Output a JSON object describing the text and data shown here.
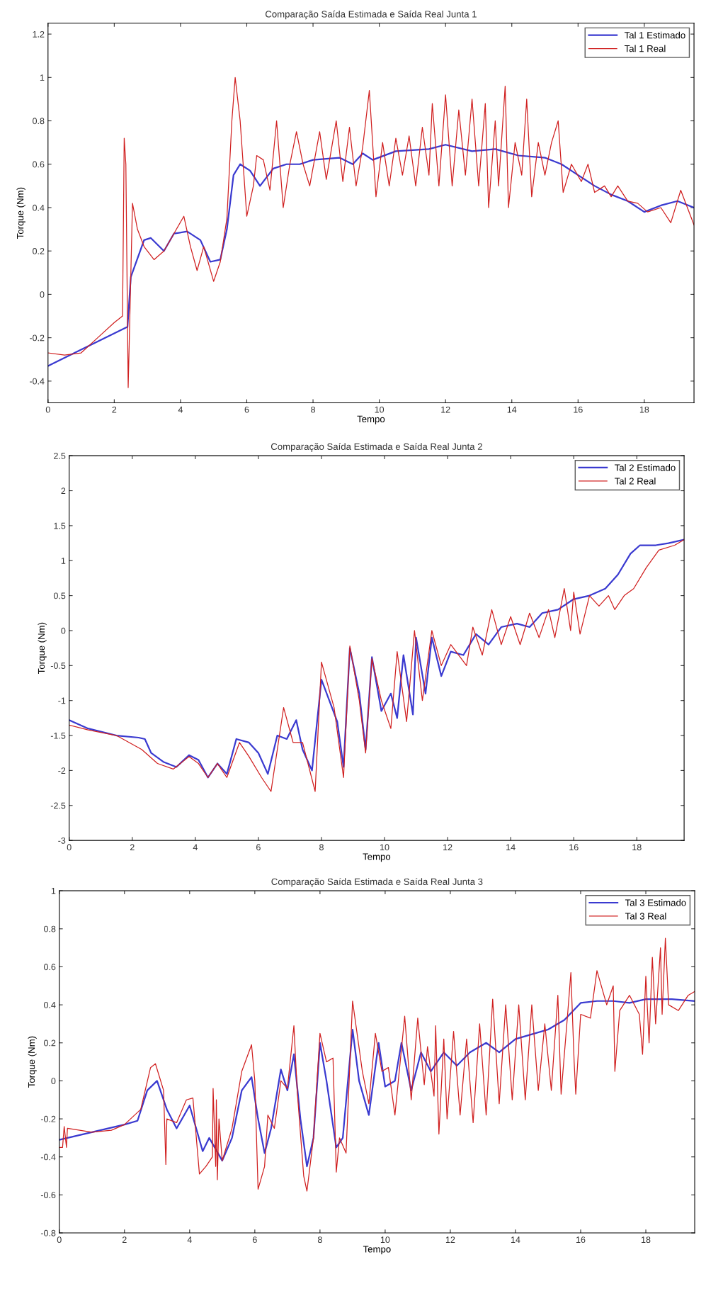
{
  "chart_data": [
    {
      "type": "line",
      "title": "Comparação Saída Estimada e Saída Real Junta 1",
      "xlabel": "Tempo",
      "ylabel": "Torque (Nm)",
      "xlim": [
        0,
        19.5
      ],
      "ylim": [
        -0.5,
        1.25
      ],
      "xticks": [
        0,
        2,
        4,
        6,
        8,
        10,
        12,
        14,
        16,
        18
      ],
      "yticks": [
        -0.4,
        -0.2,
        0,
        0.2,
        0.4,
        0.6,
        0.8,
        1,
        1.2
      ],
      "legend": "top right",
      "series": [
        {
          "name": "Tal 1 Estimado",
          "color": "#3a3ad0",
          "x": [
            0,
            2.4,
            2.5,
            2.9,
            3.1,
            3.5,
            3.8,
            4.2,
            4.6,
            4.9,
            5.2,
            5.4,
            5.6,
            5.8,
            6.1,
            6.4,
            6.8,
            7.2,
            7.6,
            8,
            8.8,
            9.2,
            9.5,
            9.8,
            10.5,
            11.5,
            12,
            12.8,
            13.5,
            14.2,
            15,
            15.5,
            16,
            16.5,
            17,
            17.5,
            18,
            18.5,
            19,
            19.5
          ],
          "values": [
            -0.33,
            -0.15,
            0.08,
            0.25,
            0.26,
            0.2,
            0.28,
            0.29,
            0.25,
            0.15,
            0.16,
            0.3,
            0.55,
            0.6,
            0.57,
            0.5,
            0.58,
            0.6,
            0.6,
            0.62,
            0.63,
            0.6,
            0.65,
            0.62,
            0.66,
            0.67,
            0.69,
            0.66,
            0.67,
            0.64,
            0.63,
            0.6,
            0.55,
            0.5,
            0.46,
            0.43,
            0.38,
            0.41,
            0.43,
            0.4
          ]
        },
        {
          "name": "Tal 1 Real",
          "color": "#d02020",
          "x": [
            0,
            0.5,
            1,
            1.5,
            2,
            2.25,
            2.3,
            2.35,
            2.42,
            2.55,
            2.7,
            2.9,
            3.2,
            3.5,
            3.8,
            4.1,
            4.3,
            4.5,
            4.7,
            5.0,
            5.2,
            5.4,
            5.55,
            5.65,
            5.8,
            6.0,
            6.2,
            6.3,
            6.5,
            6.7,
            6.9,
            7.1,
            7.3,
            7.5,
            7.7,
            7.9,
            8.2,
            8.4,
            8.7,
            8.9,
            9.1,
            9.3,
            9.5,
            9.7,
            9.9,
            10.1,
            10.3,
            10.5,
            10.7,
            10.9,
            11.1,
            11.3,
            11.5,
            11.6,
            11.8,
            12,
            12.2,
            12.4,
            12.6,
            12.8,
            13.0,
            13.2,
            13.3,
            13.5,
            13.6,
            13.8,
            13.9,
            14.1,
            14.3,
            14.45,
            14.6,
            14.8,
            15,
            15.2,
            15.4,
            15.55,
            15.8,
            16.1,
            16.3,
            16.5,
            16.8,
            17,
            17.2,
            17.5,
            17.8,
            18.1,
            18.5,
            18.8,
            19.1,
            19.5
          ],
          "values": [
            -0.27,
            -0.28,
            -0.27,
            -0.2,
            -0.13,
            -0.1,
            0.72,
            0.6,
            -0.43,
            0.42,
            0.3,
            0.22,
            0.16,
            0.2,
            0.28,
            0.36,
            0.22,
            0.11,
            0.22,
            0.06,
            0.15,
            0.35,
            0.8,
            1.0,
            0.8,
            0.36,
            0.5,
            0.64,
            0.62,
            0.48,
            0.8,
            0.4,
            0.6,
            0.75,
            0.6,
            0.5,
            0.75,
            0.53,
            0.8,
            0.52,
            0.77,
            0.5,
            0.68,
            0.94,
            0.45,
            0.7,
            0.5,
            0.72,
            0.55,
            0.73,
            0.5,
            0.77,
            0.55,
            0.88,
            0.5,
            0.92,
            0.5,
            0.85,
            0.55,
            0.9,
            0.5,
            0.88,
            0.4,
            0.8,
            0.5,
            0.96,
            0.4,
            0.7,
            0.55,
            0.9,
            0.45,
            0.7,
            0.55,
            0.7,
            0.8,
            0.47,
            0.6,
            0.52,
            0.6,
            0.47,
            0.5,
            0.45,
            0.5,
            0.43,
            0.42,
            0.38,
            0.4,
            0.33,
            0.48,
            0.32
          ]
        }
      ]
    },
    {
      "type": "line",
      "title": "Comparação Saída Estimada e Saída Real Junta 2",
      "xlabel": "Tempo",
      "ylabel": "Torque (Nm)",
      "xlim": [
        0,
        19.5
      ],
      "ylim": [
        -3,
        2.5
      ],
      "xticks": [
        0,
        2,
        4,
        6,
        8,
        10,
        12,
        14,
        16,
        18
      ],
      "yticks": [
        -3,
        -2.5,
        -2,
        -1.5,
        -1,
        -0.5,
        0,
        0.5,
        1,
        1.5,
        2,
        2.5
      ],
      "legend": "top right",
      "series": [
        {
          "name": "Tal 2 Estimado",
          "color": "#3a3ad0",
          "x": [
            0,
            0.6,
            1.5,
            2.2,
            2.4,
            2.6,
            3.0,
            3.4,
            3.8,
            4.1,
            4.4,
            4.7,
            5.0,
            5.3,
            5.7,
            6.0,
            6.3,
            6.6,
            6.9,
            7.2,
            7.4,
            7.7,
            8.0,
            8.5,
            8.7,
            8.9,
            9.2,
            9.4,
            9.6,
            9.9,
            10.2,
            10.4,
            10.6,
            10.9,
            11.0,
            11.3,
            11.5,
            11.8,
            12.1,
            12.5,
            12.9,
            13.3,
            13.7,
            14.2,
            14.6,
            15.0,
            15.5,
            16.0,
            16.5,
            17.0,
            17.4,
            17.8,
            18.1,
            18.6,
            19,
            19.5
          ],
          "values": [
            -1.28,
            -1.4,
            -1.5,
            -1.53,
            -1.55,
            -1.75,
            -1.88,
            -1.95,
            -1.78,
            -1.85,
            -2.1,
            -1.9,
            -2.05,
            -1.55,
            -1.6,
            -1.75,
            -2.05,
            -1.5,
            -1.55,
            -1.28,
            -1.7,
            -2.0,
            -0.7,
            -1.3,
            -1.95,
            -0.25,
            -0.9,
            -1.7,
            -0.38,
            -1.15,
            -0.9,
            -1.25,
            -0.35,
            -1.2,
            -0.1,
            -0.9,
            -0.1,
            -0.65,
            -0.3,
            -0.35,
            -0.05,
            -0.2,
            0.05,
            0.1,
            0.05,
            0.25,
            0.3,
            0.45,
            0.5,
            0.6,
            0.8,
            1.1,
            1.22,
            1.22,
            1.25,
            1.3
          ]
        },
        {
          "name": "Tal 2 Real",
          "color": "#d02020",
          "x": [
            0,
            0.6,
            1.5,
            2.3,
            2.8,
            3.3,
            3.8,
            4.1,
            4.4,
            4.7,
            5.0,
            5.4,
            5.7,
            6.1,
            6.4,
            6.8,
            7.1,
            7.4,
            7.8,
            8.0,
            8.4,
            8.7,
            8.9,
            9.2,
            9.4,
            9.6,
            9.9,
            10.2,
            10.4,
            10.7,
            10.95,
            11.2,
            11.5,
            11.8,
            12.1,
            12.6,
            12.8,
            13.1,
            13.4,
            13.7,
            14.0,
            14.3,
            14.6,
            14.9,
            15.2,
            15.4,
            15.7,
            15.9,
            16.0,
            16.2,
            16.5,
            16.8,
            17.1,
            17.3,
            17.6,
            17.9,
            18.3,
            18.7,
            19.2,
            19.5
          ],
          "values": [
            -1.35,
            -1.42,
            -1.5,
            -1.7,
            -1.9,
            -1.98,
            -1.8,
            -1.9,
            -2.1,
            -1.9,
            -2.1,
            -1.6,
            -1.8,
            -2.1,
            -2.3,
            -1.1,
            -1.6,
            -1.6,
            -2.3,
            -0.45,
            -1.1,
            -2.1,
            -0.22,
            -1.0,
            -1.75,
            -0.4,
            -1.0,
            -1.4,
            -0.3,
            -1.3,
            0.0,
            -1.0,
            0.0,
            -0.5,
            -0.2,
            -0.5,
            0.05,
            -0.35,
            0.3,
            -0.2,
            0.2,
            -0.2,
            0.25,
            -0.1,
            0.3,
            -0.1,
            0.6,
            0.0,
            0.55,
            -0.05,
            0.5,
            0.35,
            0.5,
            0.3,
            0.5,
            0.6,
            0.9,
            1.15,
            1.22,
            1.3
          ]
        }
      ]
    },
    {
      "type": "line",
      "title": "Comparação Saída Estimada e Saída Real Junta 3",
      "xlabel": "Tempo",
      "ylabel": "Torque (Nm)",
      "xlim": [
        0,
        19.5
      ],
      "ylim": [
        -0.8,
        1
      ],
      "xticks": [
        0,
        2,
        4,
        6,
        8,
        10,
        12,
        14,
        16,
        18
      ],
      "yticks": [
        -0.8,
        -0.6,
        -0.4,
        -0.2,
        0,
        0.2,
        0.4,
        0.6,
        0.8,
        1
      ],
      "legend": "top right",
      "series": [
        {
          "name": "Tal 3 Estimado",
          "color": "#3a3ad0",
          "x": [
            0,
            2.0,
            2.4,
            2.7,
            3.0,
            3.3,
            3.6,
            4.0,
            4.2,
            4.4,
            4.6,
            5.0,
            5.3,
            5.6,
            5.9,
            6.1,
            6.3,
            6.5,
            6.8,
            7.0,
            7.2,
            7.4,
            7.6,
            7.8,
            8.0,
            8.2,
            8.5,
            8.7,
            9.0,
            9.2,
            9.5,
            9.8,
            10.0,
            10.3,
            10.5,
            10.8,
            11.1,
            11.4,
            11.8,
            12.2,
            12.6,
            13.1,
            13.5,
            14.0,
            14.6,
            15.0,
            15.5,
            16.0,
            16.5,
            17.0,
            17.5,
            18.0,
            18.8,
            19.5
          ],
          "values": [
            -0.31,
            -0.23,
            -0.21,
            -0.05,
            0.0,
            -0.15,
            -0.25,
            -0.13,
            -0.25,
            -0.37,
            -0.3,
            -0.42,
            -0.3,
            -0.05,
            0.02,
            -0.2,
            -0.38,
            -0.25,
            0.06,
            -0.05,
            0.14,
            -0.2,
            -0.45,
            -0.3,
            0.2,
            0.0,
            -0.35,
            -0.3,
            0.27,
            0.0,
            -0.18,
            0.2,
            -0.03,
            0.0,
            0.2,
            -0.05,
            0.15,
            0.05,
            0.15,
            0.08,
            0.15,
            0.2,
            0.15,
            0.22,
            0.25,
            0.27,
            0.32,
            0.41,
            0.42,
            0.42,
            0.41,
            0.43,
            0.43,
            0.42
          ]
        },
        {
          "name": "Tal 3 Real",
          "color": "#d02020",
          "x": [
            0,
            0.1,
            0.15,
            0.22,
            0.25,
            1.0,
            1.6,
            2.0,
            2.5,
            2.8,
            2.95,
            3.2,
            3.27,
            3.3,
            3.6,
            3.9,
            4.1,
            4.3,
            4.5,
            4.7,
            4.72,
            4.8,
            4.82,
            4.85,
            4.9,
            5.0,
            5.3,
            5.6,
            5.9,
            6.0,
            6.1,
            6.3,
            6.4,
            6.6,
            6.8,
            7.0,
            7.2,
            7.3,
            7.5,
            7.6,
            7.8,
            8.0,
            8.2,
            8.4,
            8.5,
            8.6,
            8.8,
            9.0,
            9.3,
            9.5,
            9.7,
            9.9,
            10.1,
            10.3,
            10.6,
            10.8,
            11.0,
            11.2,
            11.3,
            11.5,
            11.55,
            11.65,
            11.8,
            11.9,
            12.1,
            12.3,
            12.5,
            12.7,
            12.9,
            13.1,
            13.3,
            13.5,
            13.7,
            13.9,
            14.1,
            14.3,
            14.5,
            14.7,
            14.9,
            15.1,
            15.3,
            15.4,
            15.6,
            15.7,
            15.8,
            15.85,
            16.0,
            16.3,
            16.5,
            16.8,
            17.0,
            17.05,
            17.2,
            17.5,
            17.8,
            17.9,
            18.0,
            18.1,
            18.2,
            18.3,
            18.45,
            18.5,
            18.6,
            18.7,
            19.0,
            19.3,
            19.5
          ],
          "values": [
            -0.35,
            -0.35,
            -0.24,
            -0.35,
            -0.25,
            -0.27,
            -0.26,
            -0.23,
            -0.15,
            0.07,
            0.09,
            -0.05,
            -0.44,
            -0.2,
            -0.22,
            -0.1,
            -0.09,
            -0.49,
            -0.45,
            -0.4,
            -0.04,
            -0.45,
            -0.1,
            -0.52,
            -0.2,
            -0.42,
            -0.25,
            0.05,
            0.19,
            0.0,
            -0.57,
            -0.45,
            -0.18,
            -0.25,
            0.0,
            -0.04,
            0.29,
            -0.05,
            -0.5,
            -0.58,
            -0.3,
            0.25,
            0.1,
            0.12,
            -0.48,
            -0.3,
            -0.38,
            0.42,
            0.05,
            -0.12,
            0.25,
            0.05,
            0.07,
            -0.18,
            0.34,
            -0.1,
            0.33,
            -0.02,
            0.18,
            -0.08,
            0.29,
            -0.28,
            0.22,
            -0.2,
            0.26,
            -0.18,
            0.22,
            -0.22,
            0.3,
            -0.18,
            0.43,
            -0.12,
            0.4,
            -0.1,
            0.4,
            -0.1,
            0.4,
            -0.05,
            0.3,
            -0.05,
            0.45,
            -0.07,
            0.35,
            0.57,
            0.1,
            -0.07,
            0.35,
            0.33,
            0.58,
            0.4,
            0.5,
            0.05,
            0.37,
            0.45,
            0.35,
            0.14,
            0.55,
            0.2,
            0.65,
            0.3,
            0.7,
            0.35,
            0.75,
            0.4,
            0.37,
            0.45,
            0.47
          ]
        }
      ]
    }
  ]
}
